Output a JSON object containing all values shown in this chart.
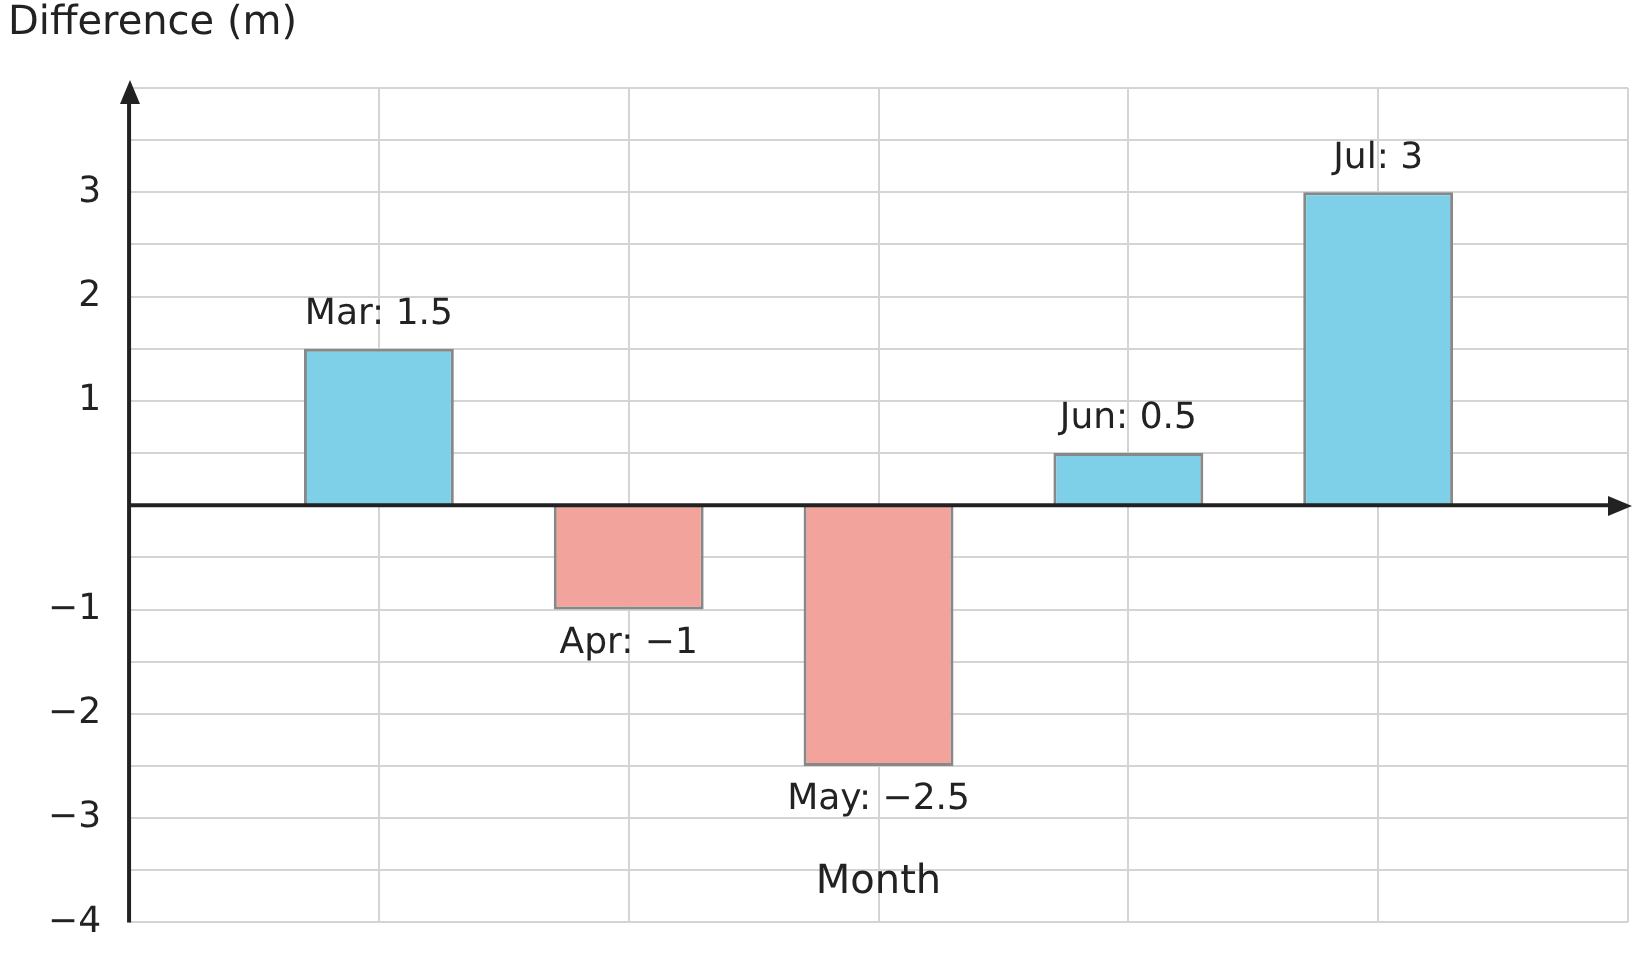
{
  "chart_data": {
    "type": "bar",
    "xlabel": "Month",
    "ylabel": "Difference (m)",
    "categories": [
      null,
      null,
      null,
      null,
      null
    ],
    "values": [
      1.5,
      -1,
      -2.5,
      0.5,
      3
    ],
    "colors": [
      "#7ecfe8",
      "#f2a39c",
      "#f2a39c",
      "#7ecfe8",
      "#7ecfe8"
    ],
    "value_labels": [
      "Mar: 1.5",
      "Apr: −1",
      "May: −2.5",
      "Jun: 0.5",
      "Jul: 3"
    ],
    "ylim": [
      -4,
      4
    ],
    "yticks": [
      -4,
      {
        "value": -3.5,
        "label": null
      },
      -3,
      {
        "value": -2.5,
        "label": null
      },
      -2,
      {
        "value": -1.5,
        "label": null
      },
      -1,
      {
        "value": -0.5,
        "label": null
      },
      {
        "value": 0,
        "label": null
      },
      {
        "value": 0.5,
        "label": null
      },
      1,
      {
        "value": 1.5,
        "label": null
      },
      2,
      {
        "value": 2.5,
        "label": null
      },
      3,
      {
        "value": 3.5,
        "label": null
      },
      {
        "value": 4,
        "label": null
      }
    ],
    "tick_labels": "y",
    "grid": true,
    "legend": false
  }
}
